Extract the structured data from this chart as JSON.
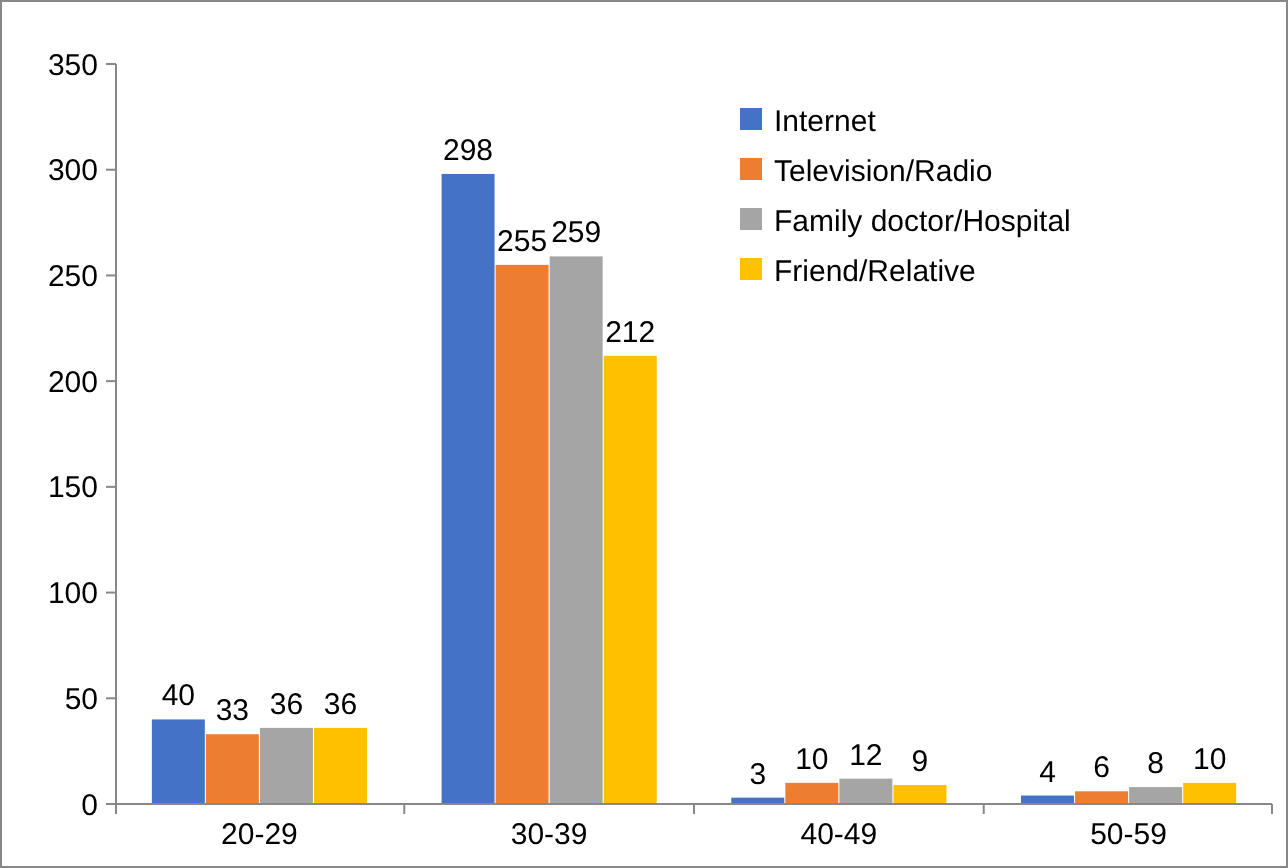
{
  "chart_data": {
    "type": "bar",
    "categories": [
      "20-29",
      "30-39",
      "40-49",
      "50-59"
    ],
    "series": [
      {
        "name": "Internet",
        "color": "#4472c4",
        "values": [
          40,
          298,
          3,
          4
        ]
      },
      {
        "name": "Television/Radio",
        "color": "#ed7d31",
        "values": [
          33,
          255,
          10,
          6
        ]
      },
      {
        "name": "Family doctor/Hospital",
        "color": "#a5a5a5",
        "values": [
          36,
          259,
          12,
          8
        ]
      },
      {
        "name": "Friend/Relative",
        "color": "#ffc000",
        "values": [
          36,
          212,
          9,
          10
        ]
      }
    ],
    "ylim": [
      0,
      350
    ],
    "yticks": [
      0,
      50,
      100,
      150,
      200,
      250,
      300,
      350
    ],
    "grid": false,
    "legend": "top right",
    "data_labels": true
  }
}
